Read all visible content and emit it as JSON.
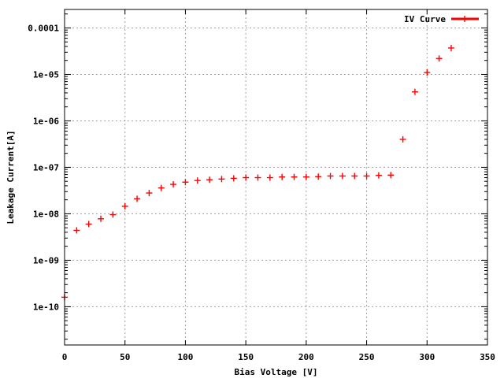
{
  "chart_data": {
    "type": "scatter",
    "xlabel": "Bias Voltage [V]",
    "ylabel": "Leakage Current[A]",
    "xlim": [
      0,
      350
    ],
    "ylim": [
      1.5e-11,
      0.00025
    ],
    "yscale": "log",
    "grid": true,
    "legend_position": "top-right",
    "x_ticks": [
      0,
      50,
      100,
      150,
      200,
      250,
      300,
      350
    ],
    "x_tick_labels": [
      "0",
      "50",
      "100",
      "150",
      "200",
      "250",
      "300",
      "350"
    ],
    "y_ticks": [
      1e-10,
      1e-09,
      1e-08,
      1e-07,
      1e-06,
      1e-05,
      0.0001
    ],
    "y_tick_labels": [
      "1e-10",
      "1e-09",
      "1e-08",
      "1e-07",
      "1e-06",
      "1e-05",
      "0.0001"
    ],
    "series": [
      {
        "name": "IV Curve",
        "color": "#ff0000",
        "marker": "cross",
        "x": [
          0,
          10,
          20,
          30,
          40,
          50,
          60,
          70,
          80,
          90,
          100,
          110,
          120,
          130,
          140,
          150,
          160,
          170,
          180,
          190,
          200,
          210,
          220,
          230,
          240,
          250,
          260,
          270,
          280,
          290,
          300,
          310,
          320
        ],
        "y": [
          1.6e-10,
          4.4e-09,
          6e-09,
          7.8e-09,
          9.6e-09,
          1.45e-08,
          2.1e-08,
          2.8e-08,
          3.6e-08,
          4.3e-08,
          4.8e-08,
          5.2e-08,
          5.4e-08,
          5.6e-08,
          5.8e-08,
          6e-08,
          6e-08,
          6e-08,
          6.2e-08,
          6.2e-08,
          6.2e-08,
          6.3e-08,
          6.5e-08,
          6.5e-08,
          6.5e-08,
          6.5e-08,
          6.7e-08,
          6.8e-08,
          4e-07,
          4.2e-06,
          1.1e-05,
          2.2e-05,
          3.7e-05
        ]
      }
    ]
  }
}
